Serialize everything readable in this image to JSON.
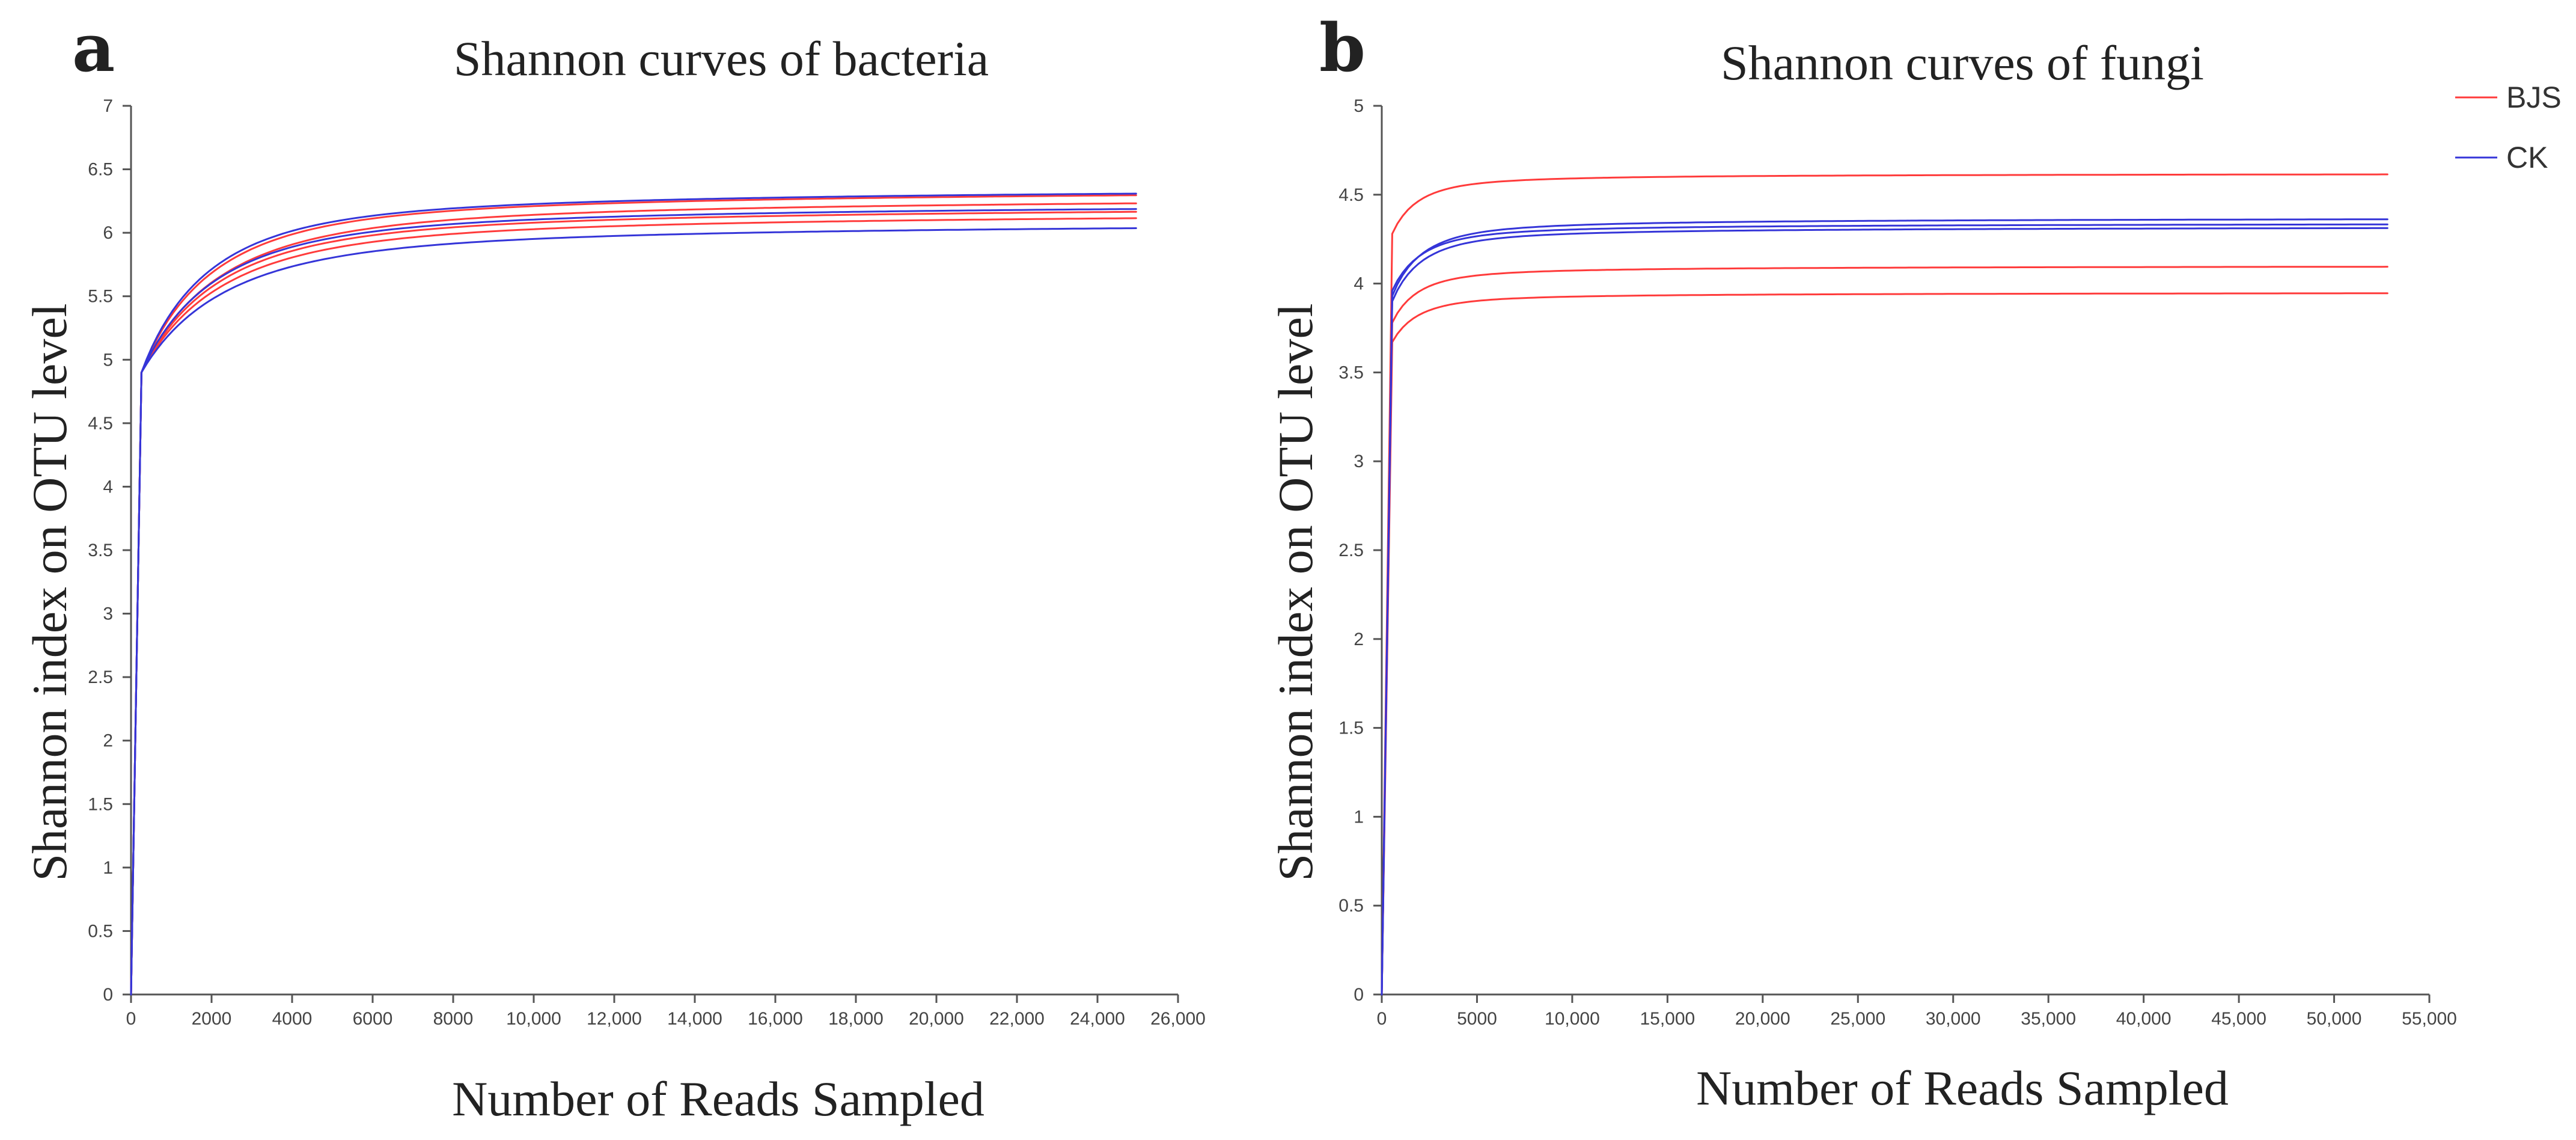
{
  "colors": {
    "BJS": "#ff3b3b",
    "CK": "#3535d8"
  },
  "legend": [
    {
      "label": "BJS",
      "color": "#ff3b3b"
    },
    {
      "label": "CK",
      "color": "#3535d8"
    }
  ],
  "chart_data": [
    {
      "panel": "a",
      "type": "line",
      "title": "Shannon curves of bacteria",
      "xlabel": "Number of Reads Sampled",
      "ylabel": "Shannon index on OTU level",
      "xlim": [
        0,
        26000
      ],
      "ylim": [
        0,
        7
      ],
      "x_ticks": [
        0,
        2000,
        4000,
        6000,
        8000,
        10000,
        12000,
        14000,
        16000,
        18000,
        20000,
        22000,
        24000,
        26000
      ],
      "x_tick_labels": [
        "0",
        "2000",
        "4000",
        "6000",
        "8000",
        "10,000",
        "12,000",
        "14,000",
        "16,000",
        "18,000",
        "20,000",
        "22,000",
        "24,000",
        "26,000"
      ],
      "y_ticks": [
        0,
        0.5,
        1,
        1.5,
        2,
        2.5,
        3,
        3.5,
        4,
        4.5,
        5,
        5.5,
        6,
        6.5,
        7
      ],
      "y_tick_labels": [
        "0",
        "0.5",
        "1",
        "1.5",
        "2",
        "2.5",
        "3",
        "3.5",
        "4",
        "4.5",
        "5",
        "5.5",
        "6",
        "6.5",
        "7"
      ],
      "x_max_sample": 25000,
      "initial_value": 4.9,
      "series": [
        {
          "name": "BJS",
          "group": "BJS",
          "plateau": 6.36,
          "k": 1800
        },
        {
          "name": "BJS",
          "group": "BJS",
          "plateau": 6.3,
          "k": 2000
        },
        {
          "name": "BJS",
          "group": "BJS",
          "plateau": 6.23,
          "k": 2000
        },
        {
          "name": "BJS",
          "group": "BJS",
          "plateau": 6.18,
          "k": 2100
        },
        {
          "name": "CK",
          "group": "CK",
          "plateau": 6.37,
          "k": 1700
        },
        {
          "name": "CK",
          "group": "CK",
          "plateau": 6.25,
          "k": 1900
        },
        {
          "name": "CK",
          "group": "CK",
          "plateau": 6.1,
          "k": 2200
        }
      ]
    },
    {
      "panel": "b",
      "type": "line",
      "title": "Shannon curves of fungi",
      "xlabel": "Number of Reads Sampled",
      "ylabel": "Shannon index on OTU level",
      "xlim": [
        0,
        55000
      ],
      "ylim": [
        0,
        5
      ],
      "x_ticks": [
        0,
        5000,
        10000,
        15000,
        20000,
        25000,
        30000,
        35000,
        40000,
        45000,
        50000,
        55000
      ],
      "x_tick_labels": [
        "0",
        "5000",
        "10,000",
        "15,000",
        "20,000",
        "25,000",
        "30,000",
        "35,000",
        "40,000",
        "45,000",
        "50,000",
        "55,000"
      ],
      "y_ticks": [
        0,
        0.5,
        1,
        1.5,
        2,
        2.5,
        3,
        3.5,
        4,
        4.5,
        5
      ],
      "y_tick_labels": [
        "0",
        "0.5",
        "1",
        "1.5",
        "2",
        "2.5",
        "3",
        "3.5",
        "4",
        "4.5",
        "5"
      ],
      "x_max_sample": 53000,
      "series": [
        {
          "name": "BJS",
          "group": "BJS",
          "plateau": 4.62,
          "start": 4.28,
          "k": 1400
        },
        {
          "name": "BJS",
          "group": "BJS",
          "plateau": 4.1,
          "start": 3.78,
          "k": 1400
        },
        {
          "name": "BJS",
          "group": "BJS",
          "plateau": 3.95,
          "start": 3.67,
          "k": 1400
        },
        {
          "name": "CK",
          "group": "CK",
          "plateau": 4.37,
          "start": 3.93,
          "k": 1600
        },
        {
          "name": "CK",
          "group": "CK",
          "plateau": 4.34,
          "start": 3.96,
          "k": 1600
        },
        {
          "name": "CK",
          "group": "CK",
          "plateau": 4.32,
          "start": 3.9,
          "k": 1600
        }
      ]
    }
  ]
}
